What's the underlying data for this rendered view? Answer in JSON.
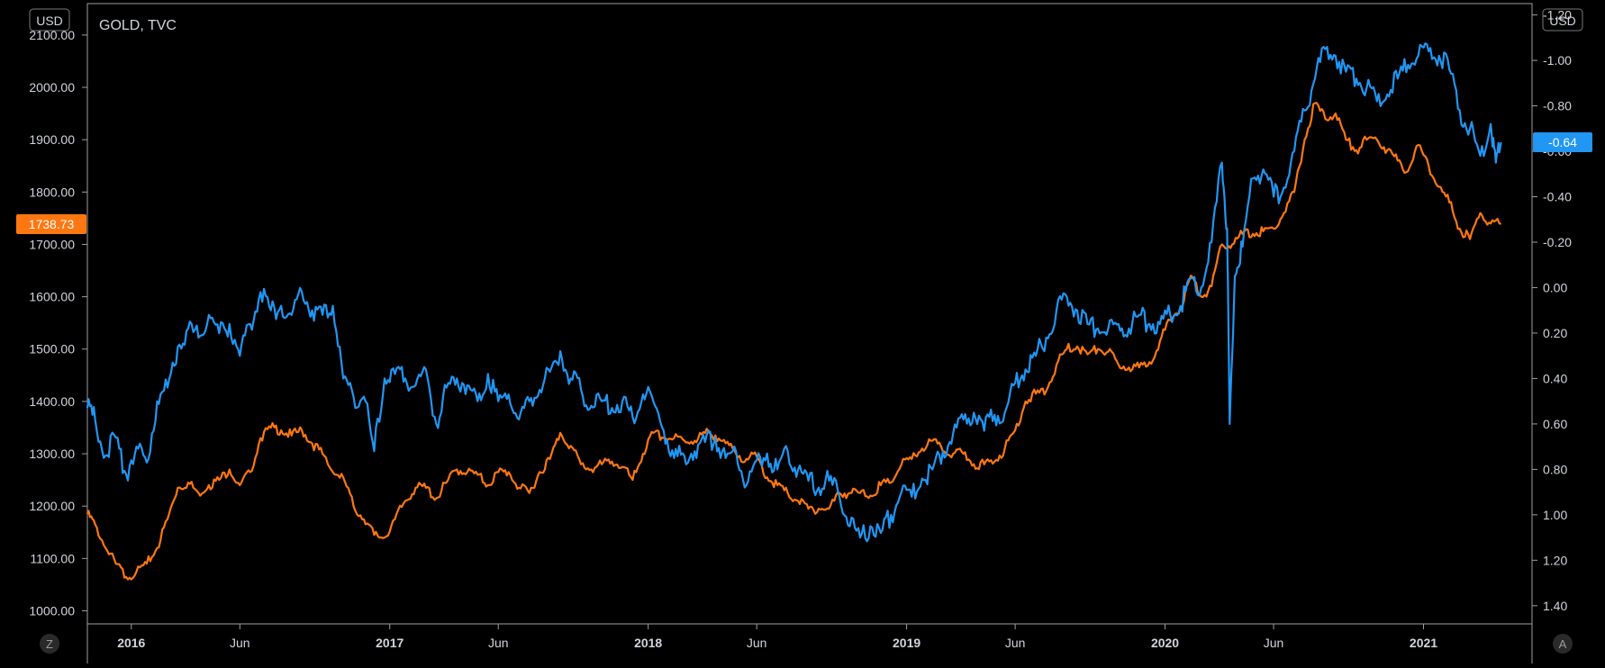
{
  "chart_data": {
    "type": "line",
    "title": "GOLD, TVC",
    "left_axis": {
      "currency": "USD",
      "min": 975,
      "max": 2160,
      "ticks": [
        "1000.00",
        "1100.00",
        "1200.00",
        "1300.00",
        "1400.00",
        "1500.00",
        "1600.00",
        "1700.00",
        "1800.00",
        "1900.00",
        "2000.00",
        "2100.00"
      ],
      "tick_values": [
        1000,
        1100,
        1200,
        1300,
        1400,
        1500,
        1600,
        1700,
        1800,
        1900,
        2000,
        2100
      ],
      "last_price_label": "1738.73",
      "last_price": 1738.73
    },
    "right_axis": {
      "currency": "USD",
      "inverted": true,
      "min": -1.25,
      "max": 1.48,
      "ticks": [
        "-1.20",
        "-1.00",
        "-0.80",
        "-0.60",
        "-0.40",
        "-0.20",
        "0.00",
        "0.20",
        "0.40",
        "0.60",
        "0.80",
        "1.00",
        "1.20",
        "1.40"
      ],
      "tick_values": [
        -1.2,
        -1.0,
        -0.8,
        -0.6,
        -0.4,
        -0.2,
        0.0,
        0.2,
        0.4,
        0.6,
        0.8,
        1.0,
        1.2,
        1.4
      ],
      "last_value_label": "-0.64",
      "last_value": -0.64
    },
    "x_axis": {
      "start": 2015.83,
      "end": 2021.42,
      "tick_labels": [
        "2016",
        "Jun",
        "2017",
        "Jun",
        "2018",
        "Jun",
        "2019",
        "Jun",
        "2020",
        "Jun",
        "2021"
      ],
      "tick_values": [
        2016.0,
        2016.42,
        2017.0,
        2017.42,
        2018.0,
        2018.42,
        2019.0,
        2019.42,
        2020.0,
        2020.42,
        2021.0
      ],
      "bold_ticks": [
        "2016",
        "2017",
        "2018",
        "2019",
        "2020",
        "2021"
      ]
    },
    "grid": false,
    "series": [
      {
        "axis": "left",
        "color": "#ff7711",
        "points": [
          [
            2015.83,
            1185
          ],
          [
            2015.86,
            1165
          ],
          [
            2015.9,
            1120
          ],
          [
            2015.94,
            1090
          ],
          [
            2015.98,
            1065
          ],
          [
            2016.02,
            1075
          ],
          [
            2016.06,
            1090
          ],
          [
            2016.1,
            1120
          ],
          [
            2016.14,
            1175
          ],
          [
            2016.18,
            1235
          ],
          [
            2016.22,
            1245
          ],
          [
            2016.26,
            1225
          ],
          [
            2016.3,
            1240
          ],
          [
            2016.34,
            1250
          ],
          [
            2016.38,
            1270
          ],
          [
            2016.42,
            1240
          ],
          [
            2016.46,
            1265
          ],
          [
            2016.5,
            1330
          ],
          [
            2016.54,
            1350
          ],
          [
            2016.58,
            1345
          ],
          [
            2016.62,
            1335
          ],
          [
            2016.66,
            1345
          ],
          [
            2016.7,
            1320
          ],
          [
            2016.74,
            1300
          ],
          [
            2016.78,
            1265
          ],
          [
            2016.82,
            1255
          ],
          [
            2016.86,
            1200
          ],
          [
            2016.9,
            1175
          ],
          [
            2016.94,
            1145
          ],
          [
            2016.98,
            1140
          ],
          [
            2017.02,
            1175
          ],
          [
            2017.06,
            1210
          ],
          [
            2017.1,
            1235
          ],
          [
            2017.14,
            1235
          ],
          [
            2017.18,
            1215
          ],
          [
            2017.22,
            1245
          ],
          [
            2017.26,
            1270
          ],
          [
            2017.3,
            1265
          ],
          [
            2017.34,
            1260
          ],
          [
            2017.38,
            1240
          ],
          [
            2017.42,
            1265
          ],
          [
            2017.46,
            1265
          ],
          [
            2017.5,
            1235
          ],
          [
            2017.54,
            1225
          ],
          [
            2017.58,
            1265
          ],
          [
            2017.62,
            1290
          ],
          [
            2017.66,
            1340
          ],
          [
            2017.7,
            1315
          ],
          [
            2017.74,
            1280
          ],
          [
            2017.78,
            1270
          ],
          [
            2017.82,
            1280
          ],
          [
            2017.86,
            1285
          ],
          [
            2017.9,
            1275
          ],
          [
            2017.94,
            1250
          ],
          [
            2017.98,
            1300
          ],
          [
            2018.02,
            1340
          ],
          [
            2018.06,
            1330
          ],
          [
            2018.1,
            1330
          ],
          [
            2018.14,
            1325
          ],
          [
            2018.18,
            1325
          ],
          [
            2018.22,
            1340
          ],
          [
            2018.26,
            1335
          ],
          [
            2018.3,
            1320
          ],
          [
            2018.34,
            1300
          ],
          [
            2018.38,
            1290
          ],
          [
            2018.42,
            1295
          ],
          [
            2018.46,
            1255
          ],
          [
            2018.5,
            1240
          ],
          [
            2018.54,
            1225
          ],
          [
            2018.58,
            1210
          ],
          [
            2018.62,
            1195
          ],
          [
            2018.66,
            1195
          ],
          [
            2018.7,
            1195
          ],
          [
            2018.74,
            1225
          ],
          [
            2018.78,
            1225
          ],
          [
            2018.82,
            1225
          ],
          [
            2018.86,
            1220
          ],
          [
            2018.9,
            1240
          ],
          [
            2018.94,
            1245
          ],
          [
            2018.98,
            1280
          ],
          [
            2019.02,
            1290
          ],
          [
            2019.06,
            1310
          ],
          [
            2019.1,
            1325
          ],
          [
            2019.14,
            1305
          ],
          [
            2019.18,
            1300
          ],
          [
            2019.22,
            1300
          ],
          [
            2019.26,
            1280
          ],
          [
            2019.3,
            1280
          ],
          [
            2019.34,
            1285
          ],
          [
            2019.38,
            1310
          ],
          [
            2019.42,
            1345
          ],
          [
            2019.46,
            1400
          ],
          [
            2019.5,
            1415
          ],
          [
            2019.54,
            1420
          ],
          [
            2019.58,
            1470
          ],
          [
            2019.62,
            1500
          ],
          [
            2019.66,
            1505
          ],
          [
            2019.7,
            1490
          ],
          [
            2019.74,
            1500
          ],
          [
            2019.78,
            1495
          ],
          [
            2019.82,
            1470
          ],
          [
            2019.86,
            1465
          ],
          [
            2019.9,
            1465
          ],
          [
            2019.94,
            1475
          ],
          [
            2019.98,
            1515
          ],
          [
            2020.02,
            1555
          ],
          [
            2020.06,
            1580
          ],
          [
            2020.1,
            1640
          ],
          [
            2020.14,
            1600
          ],
          [
            2020.18,
            1620
          ],
          [
            2020.22,
            1700
          ],
          [
            2020.26,
            1700
          ],
          [
            2020.3,
            1720
          ],
          [
            2020.34,
            1720
          ],
          [
            2020.38,
            1725
          ],
          [
            2020.42,
            1730
          ],
          [
            2020.46,
            1760
          ],
          [
            2020.5,
            1800
          ],
          [
            2020.54,
            1900
          ],
          [
            2020.58,
            1970
          ],
          [
            2020.62,
            1940
          ],
          [
            2020.66,
            1950
          ],
          [
            2020.7,
            1900
          ],
          [
            2020.74,
            1880
          ],
          [
            2020.78,
            1900
          ],
          [
            2020.82,
            1900
          ],
          [
            2020.86,
            1880
          ],
          [
            2020.9,
            1860
          ],
          [
            2020.94,
            1840
          ],
          [
            2020.98,
            1890
          ],
          [
            2021.02,
            1850
          ],
          [
            2021.06,
            1810
          ],
          [
            2021.1,
            1780
          ],
          [
            2021.14,
            1730
          ],
          [
            2021.18,
            1710
          ],
          [
            2021.22,
            1760
          ],
          [
            2021.26,
            1740
          ],
          [
            2021.3,
            1738.73
          ]
        ]
      },
      {
        "axis": "right",
        "color": "#2196f3",
        "points": [
          [
            2015.83,
            0.53
          ],
          [
            2015.86,
            0.58
          ],
          [
            2015.9,
            0.74
          ],
          [
            2015.94,
            0.66
          ],
          [
            2015.98,
            0.82
          ],
          [
            2016.02,
            0.7
          ],
          [
            2016.06,
            0.77
          ],
          [
            2016.1,
            0.5
          ],
          [
            2016.14,
            0.44
          ],
          [
            2016.18,
            0.26
          ],
          [
            2016.22,
            0.18
          ],
          [
            2016.26,
            0.22
          ],
          [
            2016.3,
            0.12
          ],
          [
            2016.34,
            0.2
          ],
          [
            2016.38,
            0.16
          ],
          [
            2016.42,
            0.3
          ],
          [
            2016.46,
            0.16
          ],
          [
            2016.5,
            0.02
          ],
          [
            2016.54,
            0.1
          ],
          [
            2016.58,
            0.08
          ],
          [
            2016.62,
            0.12
          ],
          [
            2016.66,
            0.02
          ],
          [
            2016.7,
            0.1
          ],
          [
            2016.74,
            0.12
          ],
          [
            2016.78,
            0.08
          ],
          [
            2016.82,
            0.4
          ],
          [
            2016.86,
            0.48
          ],
          [
            2016.9,
            0.48
          ],
          [
            2016.94,
            0.72
          ],
          [
            2016.98,
            0.4
          ],
          [
            2017.02,
            0.38
          ],
          [
            2017.06,
            0.4
          ],
          [
            2017.1,
            0.43
          ],
          [
            2017.14,
            0.36
          ],
          [
            2017.18,
            0.6
          ],
          [
            2017.22,
            0.44
          ],
          [
            2017.26,
            0.4
          ],
          [
            2017.3,
            0.43
          ],
          [
            2017.34,
            0.5
          ],
          [
            2017.38,
            0.38
          ],
          [
            2017.42,
            0.5
          ],
          [
            2017.46,
            0.47
          ],
          [
            2017.5,
            0.58
          ],
          [
            2017.54,
            0.5
          ],
          [
            2017.58,
            0.45
          ],
          [
            2017.62,
            0.37
          ],
          [
            2017.66,
            0.28
          ],
          [
            2017.7,
            0.4
          ],
          [
            2017.74,
            0.45
          ],
          [
            2017.78,
            0.52
          ],
          [
            2017.82,
            0.5
          ],
          [
            2017.86,
            0.53
          ],
          [
            2017.9,
            0.5
          ],
          [
            2017.94,
            0.57
          ],
          [
            2017.98,
            0.47
          ],
          [
            2018.02,
            0.5
          ],
          [
            2018.06,
            0.63
          ],
          [
            2018.1,
            0.75
          ],
          [
            2018.14,
            0.74
          ],
          [
            2018.18,
            0.72
          ],
          [
            2018.22,
            0.68
          ],
          [
            2018.26,
            0.66
          ],
          [
            2018.3,
            0.75
          ],
          [
            2018.34,
            0.72
          ],
          [
            2018.38,
            0.87
          ],
          [
            2018.42,
            0.76
          ],
          [
            2018.46,
            0.73
          ],
          [
            2018.5,
            0.8
          ],
          [
            2018.54,
            0.72
          ],
          [
            2018.58,
            0.8
          ],
          [
            2018.62,
            0.85
          ],
          [
            2018.66,
            0.88
          ],
          [
            2018.7,
            0.85
          ],
          [
            2018.74,
            0.92
          ],
          [
            2018.78,
            1.05
          ],
          [
            2018.82,
            1.1
          ],
          [
            2018.86,
            1.05
          ],
          [
            2018.9,
            1.08
          ],
          [
            2018.94,
            1.0
          ],
          [
            2018.98,
            0.9
          ],
          [
            2019.02,
            0.92
          ],
          [
            2019.06,
            0.84
          ],
          [
            2019.1,
            0.8
          ],
          [
            2019.14,
            0.72
          ],
          [
            2019.18,
            0.64
          ],
          [
            2019.22,
            0.58
          ],
          [
            2019.26,
            0.55
          ],
          [
            2019.3,
            0.63
          ],
          [
            2019.34,
            0.56
          ],
          [
            2019.38,
            0.55
          ],
          [
            2019.42,
            0.42
          ],
          [
            2019.46,
            0.36
          ],
          [
            2019.5,
            0.3
          ],
          [
            2019.54,
            0.22
          ],
          [
            2019.58,
            0.1
          ],
          [
            2019.62,
            0.04
          ],
          [
            2019.66,
            0.1
          ],
          [
            2019.7,
            0.16
          ],
          [
            2019.74,
            0.18
          ],
          [
            2019.78,
            0.18
          ],
          [
            2019.82,
            0.16
          ],
          [
            2019.86,
            0.18
          ],
          [
            2019.9,
            0.12
          ],
          [
            2019.94,
            0.16
          ],
          [
            2019.98,
            0.16
          ],
          [
            2020.02,
            0.12
          ],
          [
            2020.06,
            0.08
          ],
          [
            2020.1,
            -0.04
          ],
          [
            2020.14,
            0.0
          ],
          [
            2020.18,
            -0.2
          ],
          [
            2020.22,
            -0.55
          ],
          [
            2020.24,
            -0.26
          ],
          [
            2020.25,
            0.6
          ],
          [
            2020.27,
            -0.05
          ],
          [
            2020.3,
            -0.18
          ],
          [
            2020.34,
            -0.48
          ],
          [
            2020.38,
            -0.52
          ],
          [
            2020.42,
            -0.4
          ],
          [
            2020.46,
            -0.44
          ],
          [
            2020.5,
            -0.6
          ],
          [
            2020.54,
            -0.78
          ],
          [
            2020.58,
            -0.92
          ],
          [
            2020.62,
            -1.05
          ],
          [
            2020.66,
            -1.02
          ],
          [
            2020.7,
            -0.95
          ],
          [
            2020.74,
            -0.92
          ],
          [
            2020.78,
            -0.88
          ],
          [
            2020.82,
            -0.82
          ],
          [
            2020.86,
            -0.85
          ],
          [
            2020.9,
            -0.92
          ],
          [
            2020.94,
            -0.98
          ],
          [
            2020.98,
            -1.02
          ],
          [
            2021.02,
            -1.04
          ],
          [
            2021.06,
            -1.02
          ],
          [
            2021.1,
            -0.96
          ],
          [
            2021.14,
            -0.78
          ],
          [
            2021.18,
            -0.7
          ],
          [
            2021.22,
            -0.58
          ],
          [
            2021.26,
            -0.72
          ],
          [
            2021.28,
            -0.55
          ],
          [
            2021.3,
            -0.64
          ]
        ]
      }
    ]
  },
  "corner": {
    "bottom_left_btn": "Z",
    "bottom_right_btn": "A"
  },
  "colors": {
    "background": "#000000",
    "gold_series": "#ff7711",
    "yield_series": "#2196f3",
    "axis_text": "#d1d4dc",
    "axis_line": "#9e9e9e"
  }
}
